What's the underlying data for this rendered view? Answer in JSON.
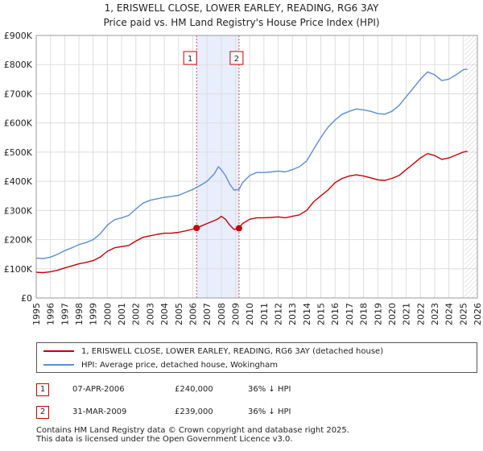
{
  "title_line1": "1, ERISWELL CLOSE, LOWER EARLEY, READING, RG6 3AY",
  "title_line2": "Price paid vs. HM Land Registry's House Price Index (HPI)",
  "colors": {
    "property": "#cc0000",
    "hpi": "#5b8fd6",
    "shade": "#e8eefc",
    "grid": "#dddddd",
    "marker_border": "#cc0000"
  },
  "chart_data": {
    "type": "line",
    "ylim": [
      0,
      900000
    ],
    "xlim": [
      1995,
      2026
    ],
    "y_ticks": [
      0,
      100000,
      200000,
      300000,
      400000,
      500000,
      600000,
      700000,
      800000,
      900000
    ],
    "y_tick_labels": [
      "£0",
      "£100K",
      "£200K",
      "£300K",
      "£400K",
      "£500K",
      "£600K",
      "£700K",
      "£800K",
      "£900K"
    ],
    "x_ticks": [
      1995,
      1996,
      1997,
      1998,
      1999,
      2000,
      2001,
      2002,
      2003,
      2004,
      2005,
      2006,
      2007,
      2008,
      2009,
      2010,
      2011,
      2012,
      2013,
      2014,
      2015,
      2016,
      2017,
      2018,
      2019,
      2020,
      2021,
      2022,
      2023,
      2024,
      2025,
      2026
    ],
    "x_tick_labels": [
      "1995",
      "1996",
      "1997",
      "1998",
      "1999",
      "2000",
      "2001",
      "2002",
      "2003",
      "2004",
      "2005",
      "2006",
      "2007",
      "2008",
      "2009",
      "2010",
      "2011",
      "2012",
      "2013",
      "2014",
      "2015",
      "2016",
      "2017",
      "2018",
      "2019",
      "2020",
      "2021",
      "2022",
      "2023",
      "2024",
      "2025",
      "2026"
    ],
    "series": [
      {
        "name": "1, ERISWELL CLOSE, LOWER EARLEY, READING, RG6 3AY (detached house)",
        "color": "#cc0000",
        "x": [
          1995.0,
          1995.5,
          1996.0,
          1996.5,
          1997.0,
          1997.5,
          1998.0,
          1998.5,
          1999.0,
          1999.5,
          2000.0,
          2000.5,
          2001.0,
          2001.5,
          2002.0,
          2002.5,
          2003.0,
          2003.5,
          2004.0,
          2004.5,
          2005.0,
          2005.5,
          2006.0,
          2006.27,
          2006.5,
          2007.0,
          2007.5,
          2007.8,
          2008.0,
          2008.3,
          2008.6,
          2008.9,
          2009.25,
          2009.5,
          2010.0,
          2010.5,
          2011.0,
          2011.5,
          2012.0,
          2012.5,
          2013.0,
          2013.5,
          2014.0,
          2014.5,
          2015.0,
          2015.5,
          2016.0,
          2016.5,
          2017.0,
          2017.5,
          2018.0,
          2018.5,
          2019.0,
          2019.5,
          2020.0,
          2020.5,
          2021.0,
          2021.5,
          2022.0,
          2022.5,
          2023.0,
          2023.5,
          2024.0,
          2024.5,
          2025.0,
          2025.3
        ],
        "values": [
          88000,
          87000,
          90000,
          95000,
          103000,
          110000,
          117000,
          122000,
          128000,
          140000,
          160000,
          172000,
          176000,
          180000,
          195000,
          208000,
          213000,
          218000,
          222000,
          222000,
          225000,
          230000,
          236000,
          240000,
          245000,
          255000,
          265000,
          272000,
          280000,
          270000,
          250000,
          235000,
          239000,
          255000,
          270000,
          275000,
          275000,
          276000,
          278000,
          275000,
          280000,
          285000,
          300000,
          330000,
          350000,
          370000,
          395000,
          410000,
          418000,
          422000,
          418000,
          412000,
          405000,
          403000,
          410000,
          420000,
          440000,
          460000,
          480000,
          495000,
          488000,
          475000,
          480000,
          490000,
          500000,
          503000
        ]
      },
      {
        "name": "HPI: Average price, detached house, Wokingham",
        "color": "#5b8fd6",
        "x": [
          1995.0,
          1995.5,
          1996.0,
          1996.5,
          1997.0,
          1997.5,
          1998.0,
          1998.5,
          1999.0,
          1999.5,
          2000.0,
          2000.5,
          2001.0,
          2001.5,
          2002.0,
          2002.5,
          2003.0,
          2003.5,
          2004.0,
          2004.5,
          2005.0,
          2005.5,
          2006.0,
          2006.5,
          2007.0,
          2007.5,
          2007.8,
          2008.0,
          2008.3,
          2008.6,
          2008.9,
          2009.25,
          2009.5,
          2010.0,
          2010.5,
          2011.0,
          2011.5,
          2012.0,
          2012.5,
          2013.0,
          2013.5,
          2014.0,
          2014.5,
          2015.0,
          2015.5,
          2016.0,
          2016.5,
          2017.0,
          2017.5,
          2018.0,
          2018.5,
          2019.0,
          2019.5,
          2020.0,
          2020.5,
          2021.0,
          2021.5,
          2022.0,
          2022.5,
          2023.0,
          2023.5,
          2024.0,
          2024.5,
          2025.0,
          2025.3
        ],
        "values": [
          137000,
          135000,
          140000,
          150000,
          162000,
          172000,
          183000,
          190000,
          200000,
          220000,
          250000,
          268000,
          275000,
          283000,
          305000,
          325000,
          335000,
          340000,
          345000,
          348000,
          352000,
          362000,
          372000,
          385000,
          400000,
          425000,
          450000,
          440000,
          420000,
          390000,
          370000,
          372000,
          395000,
          420000,
          430000,
          430000,
          432000,
          435000,
          432000,
          440000,
          450000,
          470000,
          510000,
          550000,
          585000,
          610000,
          630000,
          640000,
          648000,
          645000,
          640000,
          632000,
          630000,
          640000,
          660000,
          690000,
          720000,
          750000,
          775000,
          765000,
          745000,
          750000,
          765000,
          782000,
          785000
        ]
      }
    ],
    "shaded_region": [
      2006.27,
      2009.25
    ],
    "sale_markers": [
      {
        "label": "1",
        "x": 2006.27,
        "value": 240000
      },
      {
        "label": "2",
        "x": 2009.25,
        "value": 239000
      }
    ],
    "projection_start": 2025.1
  },
  "legend": {
    "property_label": "1, ERISWELL CLOSE, LOWER EARLEY, READING, RG6 3AY (detached house)",
    "hpi_label": "HPI: Average price, detached house, Wokingham"
  },
  "sales": [
    {
      "num": "1",
      "date": "07-APR-2006",
      "price": "£240,000",
      "hpi": "36% ↓ HPI"
    },
    {
      "num": "2",
      "date": "31-MAR-2009",
      "price": "£239,000",
      "hpi": "36% ↓ HPI"
    }
  ],
  "footer": {
    "line1": "Contains HM Land Registry data © Crown copyright and database right 2025.",
    "line2": "This data is licensed under the Open Government Licence v3.0."
  }
}
